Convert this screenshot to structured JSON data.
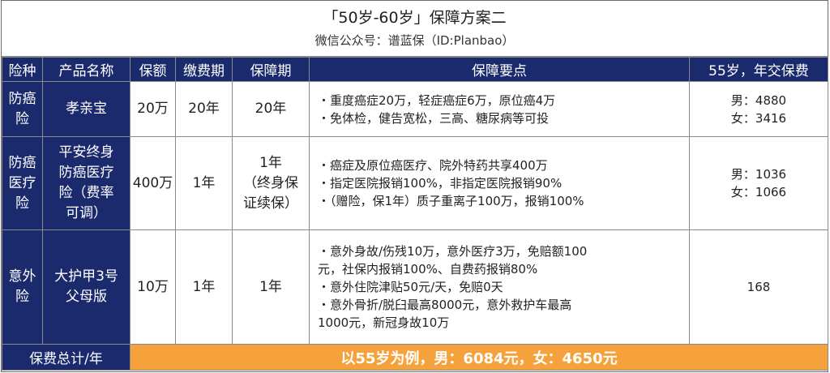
{
  "title": "「50岁-60岁」保障方案二",
  "subtitle": "微信公众号：谱蓝保（ID:Planbao）",
  "headers": {
    "risk": "险种",
    "product": "产品名称",
    "amount": "保额",
    "pay_term": "缴费期",
    "cover_term": "保障期",
    "points": "保障要点",
    "premium": "55岁，年交保费"
  },
  "rows": [
    {
      "risk": [
        "防癌",
        "险"
      ],
      "product": [
        "孝亲宝"
      ],
      "amount": "20万",
      "pay_term": "20年",
      "cover_term": [
        "20年"
      ],
      "points": [
        "・重度癌症20万，轻症癌症6万，原位癌4万",
        "・免体检，健告宽松，三高、糖尿病等可投"
      ],
      "premium": [
        "男：4880",
        "女：3416"
      ]
    },
    {
      "risk": [
        "防癌",
        "医疗",
        "险"
      ],
      "product": [
        "平安终身",
        "防癌医疗",
        "险（费率",
        "可调）"
      ],
      "amount": "400万",
      "pay_term": "1年",
      "cover_term": [
        "1年",
        "（终身保",
        "证续保）"
      ],
      "points": [
        "・癌症及原位癌医疗、院外特药共享400万",
        "・指定医院报销100%，非指定医院报销90%",
        "・（赠险，保1年）质子重离子100万，报销100%"
      ],
      "premium": [
        "男：1036",
        "女：1066"
      ]
    },
    {
      "risk": [
        "意外",
        "险"
      ],
      "product": [
        "大护甲3号",
        "父母版"
      ],
      "amount": "10万",
      "pay_term": "1年",
      "cover_term": [
        "1年"
      ],
      "points": [
        "・意外身故/伤残10万，意外医疗3万，免赔额100",
        "元，社保内报销100%、自费药报销80%",
        "・意外住院津贴50元/天，免赔0天",
        "・意外骨折/脱臼最高8000元，意外救护车最高",
        "1000元，新冠身故10万"
      ],
      "premium": [
        "168"
      ]
    }
  ],
  "footer": {
    "label": "保费总计/年",
    "total": "以55岁为例，男：6084元，女：4650元"
  },
  "colors": {
    "header_bg": "#1b2a6d",
    "footer_total_bg": "#f5a23c"
  }
}
